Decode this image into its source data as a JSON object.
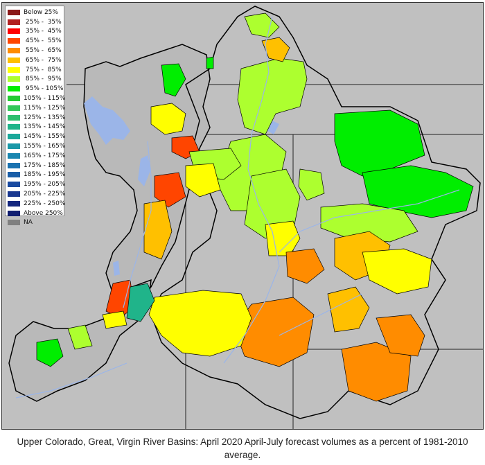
{
  "legend": {
    "items": [
      {
        "label": "Below 25%",
        "color": "#8b1a1a"
      },
      {
        "label": " 25% -  35%",
        "color": "#b22222"
      },
      {
        "label": " 35% -  45%",
        "color": "#ff0000"
      },
      {
        "label": " 45% -  55%",
        "color": "#ff4500"
      },
      {
        "label": " 55% -  65%",
        "color": "#ff8c00"
      },
      {
        "label": " 65% -  75%",
        "color": "#ffc000"
      },
      {
        "label": " 75% -  85%",
        "color": "#ffff00"
      },
      {
        "label": " 85% -  95%",
        "color": "#adff2f"
      },
      {
        "label": " 95% - 105%",
        "color": "#00ee00"
      },
      {
        "label": "105% - 115%",
        "color": "#22cc33"
      },
      {
        "label": "115% - 125%",
        "color": "#33c85a"
      },
      {
        "label": "125% - 135%",
        "color": "#2ebf6e"
      },
      {
        "label": "135% - 145%",
        "color": "#20b48a"
      },
      {
        "label": "145% - 155%",
        "color": "#1aa89a"
      },
      {
        "label": "155% - 165%",
        "color": "#1a98a8"
      },
      {
        "label": "165% - 175%",
        "color": "#1a86b0"
      },
      {
        "label": "175% - 185%",
        "color": "#1a72b0"
      },
      {
        "label": "185% - 195%",
        "color": "#1a5ea8"
      },
      {
        "label": "195% - 205%",
        "color": "#1a4aa0"
      },
      {
        "label": "205% - 225%",
        "color": "#1a3890"
      },
      {
        "label": "225% - 250%",
        "color": "#15287f"
      },
      {
        "label": "Above 250%",
        "color": "#101d70"
      },
      {
        "label": "NA",
        "color": "#808080"
      }
    ]
  },
  "colors": {
    "background": "#c0c0c0",
    "lake": "#9bb5e8",
    "river": "#9bb5e8",
    "outline": "#000000"
  },
  "caption": "Upper Colorado, Great, Virgin River Basins: April 2020 April-July forecast volumes as a percent of 1981-2010 average."
}
